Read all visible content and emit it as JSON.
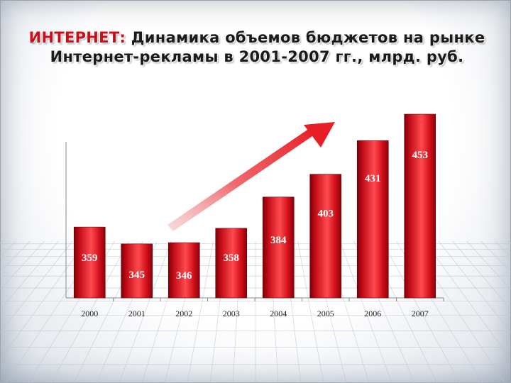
{
  "slide": {
    "title_accent": "ИНТЕРНЕТ:",
    "title_rest": "Динамика объемов бюджетов на рынке",
    "title_line2": "Интернет-рекламы в 2001-2007 гг., млрд. руб."
  },
  "colors": {
    "bar": "#d4111c",
    "bar_dark": "#7e0008",
    "bar_light": "#ff5a5a",
    "arrow": "#ee2a30",
    "accent": "#c8101a"
  },
  "chart_data": {
    "type": "bar",
    "categories": [
      "2000",
      "2001",
      "2002",
      "2003",
      "2004",
      "2005",
      "2006",
      "2007"
    ],
    "values": [
      359,
      345,
      346,
      358,
      384,
      403,
      431,
      453
    ],
    "title": "ИНТЕРНЕТ: Динамика объемов бюджетов на рынке Интернет-рекламы в 2001-2007 гг., млрд. руб.",
    "xlabel": "",
    "ylabel": "",
    "ylim": [
      0,
      453
    ],
    "grid": false,
    "legend": "none",
    "annotations": [
      "upward trend arrow"
    ]
  }
}
